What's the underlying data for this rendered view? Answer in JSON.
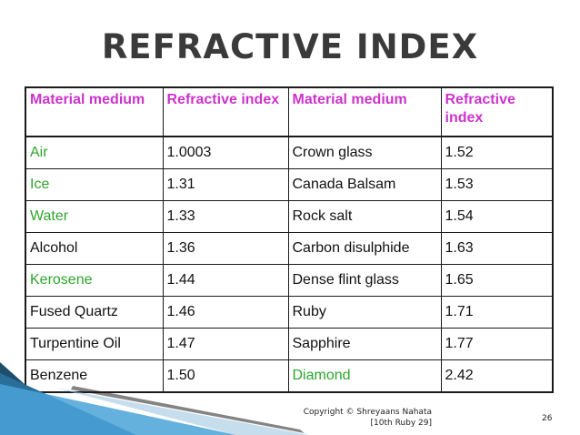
{
  "title": "REFRACTIVE INDEX",
  "table": {
    "headers": [
      "Material medium",
      "Refractive index",
      "Material medium",
      "Refractive index"
    ],
    "rows": [
      {
        "m1": "Air",
        "v1": "1.0003",
        "m2": "Crown glass",
        "v2": "1.52",
        "g1": true,
        "g2": false
      },
      {
        "m1": "Ice",
        "v1": "1.31",
        "m2": "Canada Balsam",
        "v2": "1.53",
        "g1": true,
        "g2": false
      },
      {
        "m1": "Water",
        "v1": "1.33",
        "m2": "Rock salt",
        "v2": "1.54",
        "g1": true,
        "g2": false
      },
      {
        "m1": "Alcohol",
        "v1": "1.36",
        "m2": "Carbon disulphide",
        "v2": "1.63",
        "g1": false,
        "g2": false
      },
      {
        "m1": "Kerosene",
        "v1": "1.44",
        "m2": "Dense flint glass",
        "v2": "1.65",
        "g1": true,
        "g2": false
      },
      {
        "m1": "Fused Quartz",
        "v1": "1.46",
        "m2": "Ruby",
        "v2": "1.71",
        "g1": false,
        "g2": false
      },
      {
        "m1": "Turpentine Oil",
        "v1": "1.47",
        "m2": "Sapphire",
        "v2": "1.77",
        "g1": false,
        "g2": false
      },
      {
        "m1": "Benzene",
        "v1": "1.50",
        "m2": "Diamond",
        "v2": "2.42",
        "g1": false,
        "g2": true
      }
    ]
  },
  "footer": {
    "copyright_line1": "Copyright © Shreyaans Nahata",
    "copyright_line2": "[10th Ruby 29]",
    "page_number": "26"
  },
  "colors": {
    "header_text": "#cc33cc",
    "highlight_text": "#2ca52c",
    "title_text": "#3a3a3a",
    "swoosh_dark": "#1f4e6b",
    "swoosh_light": "#4aa3d8"
  }
}
